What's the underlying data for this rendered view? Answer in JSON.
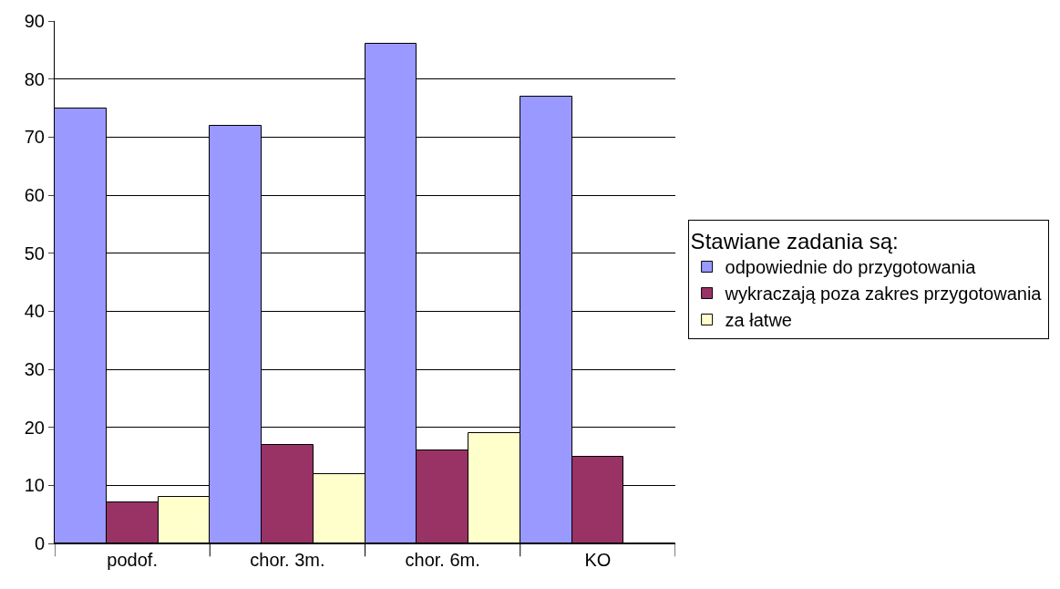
{
  "chart_data": {
    "type": "bar",
    "legend_title": "Stawiane zadania są:",
    "categories": [
      "podof.",
      "chor. 3m.",
      "chor. 6m.",
      "KO"
    ],
    "series": [
      {
        "name": "odpowiednie do przygotowania",
        "color": "#9999ff",
        "values": [
          75,
          72,
          86,
          77
        ]
      },
      {
        "name": "wykraczają poza zakres przygotowania",
        "color": "#993366",
        "values": [
          7,
          17,
          16,
          15
        ]
      },
      {
        "name": "za łatwe",
        "color": "#ffffcc",
        "values": [
          8,
          12,
          19,
          0
        ]
      }
    ],
    "ylim": [
      0,
      90
    ],
    "yticks": [
      0,
      10,
      20,
      30,
      40,
      50,
      60,
      70,
      80,
      90
    ],
    "grid": "y",
    "legend": "right"
  }
}
